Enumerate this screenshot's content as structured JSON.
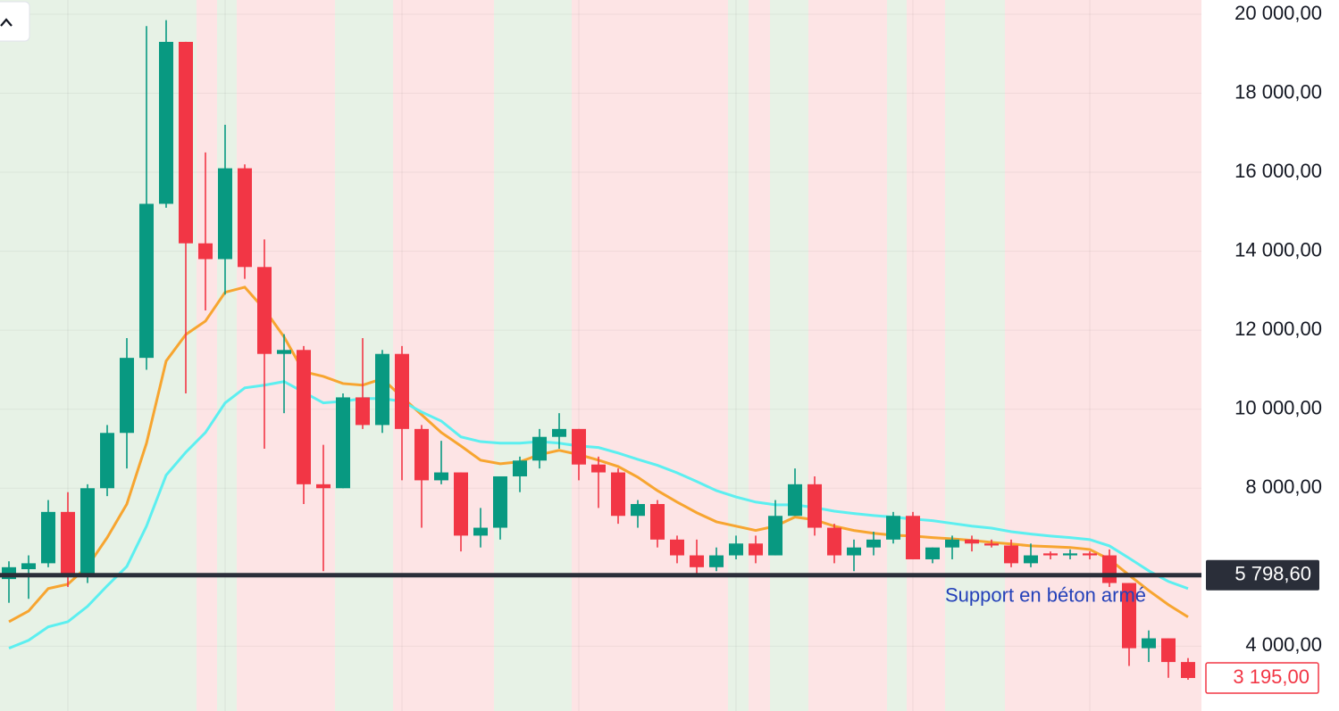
{
  "chart_data": {
    "type": "candlestick",
    "open": [
      5700,
      5950,
      6100,
      7400,
      5800,
      8000,
      9400,
      11300,
      15200,
      19300,
      14200,
      13800,
      16100,
      13600,
      11400,
      11500,
      8100,
      8000,
      10300,
      9600,
      11400,
      9500,
      8200,
      8400,
      6800,
      7000,
      8300,
      8700,
      9300,
      9500,
      8600,
      8400,
      7300,
      7600,
      6700,
      6300,
      6000,
      6300,
      6600,
      6300,
      7300,
      8100,
      7000,
      6300,
      6500,
      6700,
      7300,
      6200,
      6500,
      6700,
      6600,
      6550,
      6100,
      6350,
      6300,
      6350,
      6300,
      5600,
      3950,
      4200,
      3600
    ],
    "high": [
      6150,
      6300,
      7700,
      7900,
      8100,
      9600,
      11800,
      19700,
      19850,
      19300,
      16500,
      17200,
      16200,
      14300,
      11900,
      11600,
      9100,
      10400,
      11800,
      11500,
      11600,
      9600,
      9200,
      8400,
      7500,
      8300,
      8800,
      9500,
      9900,
      9500,
      8800,
      8500,
      7700,
      7700,
      6800,
      6700,
      6500,
      6800,
      6800,
      7700,
      8500,
      8300,
      7100,
      6700,
      6900,
      7400,
      7400,
      6500,
      6800,
      6800,
      6700,
      6700,
      6600,
      6400,
      6450,
      6400,
      6450,
      5600,
      4400,
      4200,
      3700
    ],
    "low": [
      5100,
      5200,
      6000,
      5500,
      5600,
      7800,
      8500,
      11000,
      15100,
      10400,
      12500,
      12900,
      13300,
      9000,
      9900,
      7600,
      5900,
      8000,
      9500,
      9400,
      8200,
      7000,
      8100,
      6400,
      6500,
      6700,
      7900,
      8500,
      9000,
      8200,
      7500,
      7100,
      7000,
      6500,
      6100,
      5800,
      5900,
      6200,
      6100,
      6300,
      7300,
      6800,
      6100,
      5900,
      6300,
      6600,
      6200,
      6100,
      6200,
      6400,
      6500,
      6000,
      6000,
      6200,
      6200,
      6200,
      5500,
      3500,
      3600,
      3200,
      3150
    ],
    "close": [
      6000,
      6100,
      7400,
      5800,
      8000,
      9400,
      11300,
      15200,
      19300,
      14200,
      13800,
      16100,
      13600,
      11400,
      11500,
      8100,
      8000,
      10300,
      9600,
      11400,
      9500,
      8200,
      8400,
      6800,
      7000,
      8300,
      8700,
      9300,
      9500,
      8600,
      8400,
      7300,
      7600,
      6700,
      6300,
      6000,
      6300,
      6600,
      6300,
      7300,
      8100,
      7000,
      6300,
      6500,
      6700,
      7300,
      6200,
      6500,
      6700,
      6600,
      6550,
      6100,
      6300,
      6300,
      6350,
      6300,
      5600,
      3950,
      4200,
      3600,
      3195
    ],
    "up_color": "#089981",
    "down_color": "#f23645",
    "lines": [
      {
        "color": "#f7a530",
        "values": [
          4620,
          4890,
          5460,
          5570,
          6020,
          6750,
          7600,
          9140,
          11220,
          11890,
          12230,
          12960,
          13090,
          12530,
          11830,
          10950,
          10830,
          10650,
          10610,
          10770,
          10310,
          9860,
          9410,
          9070,
          8710,
          8620,
          8670,
          8850,
          8960,
          8850,
          8710,
          8550,
          8280,
          7940,
          7650,
          7380,
          7150,
          7040,
          6930,
          7040,
          7270,
          7200,
          7040,
          6930,
          6860,
          6810,
          6790,
          6750,
          6720,
          6680,
          6630,
          6590,
          6540,
          6520,
          6500,
          6450,
          6200,
          5800,
          5410,
          5050,
          4740
        ]
      },
      {
        "color": "#5ceff0",
        "values": [
          3950,
          4150,
          4490,
          4620,
          5010,
          5530,
          6020,
          7040,
          8330,
          8910,
          9410,
          10160,
          10540,
          10610,
          10700,
          10430,
          10160,
          10200,
          10270,
          10270,
          10200,
          9930,
          9700,
          9300,
          9180,
          9140,
          9140,
          9180,
          9140,
          9070,
          9030,
          8890,
          8730,
          8580,
          8390,
          8170,
          7940,
          7780,
          7650,
          7580,
          7580,
          7510,
          7420,
          7360,
          7310,
          7270,
          7220,
          7180,
          7110,
          7040,
          6990,
          6900,
          6840,
          6790,
          6750,
          6700,
          6540,
          6230,
          5910,
          5640,
          5460
        ]
      }
    ],
    "ylim": [
      2360,
      20360
    ],
    "yticks": [
      {
        "value": 4000,
        "label": "4 000,00"
      },
      {
        "value": 8000,
        "label": "8 000,00"
      },
      {
        "value": 10000,
        "label": "10 000,00"
      },
      {
        "value": 12000,
        "label": "12 000,00"
      },
      {
        "value": 14000,
        "label": "14 000,00"
      },
      {
        "value": 16000,
        "label": "16 000,00"
      },
      {
        "value": 18000,
        "label": "18 000,00"
      },
      {
        "value": 20000,
        "label": "20 000,00"
      }
    ],
    "grid": true,
    "support": {
      "value": 5798.6,
      "label": "5 798,60",
      "color": "#2a2e39",
      "annotation": "Support en béton armé"
    },
    "last_price": {
      "value": 3195,
      "label": "3 195,00"
    }
  }
}
